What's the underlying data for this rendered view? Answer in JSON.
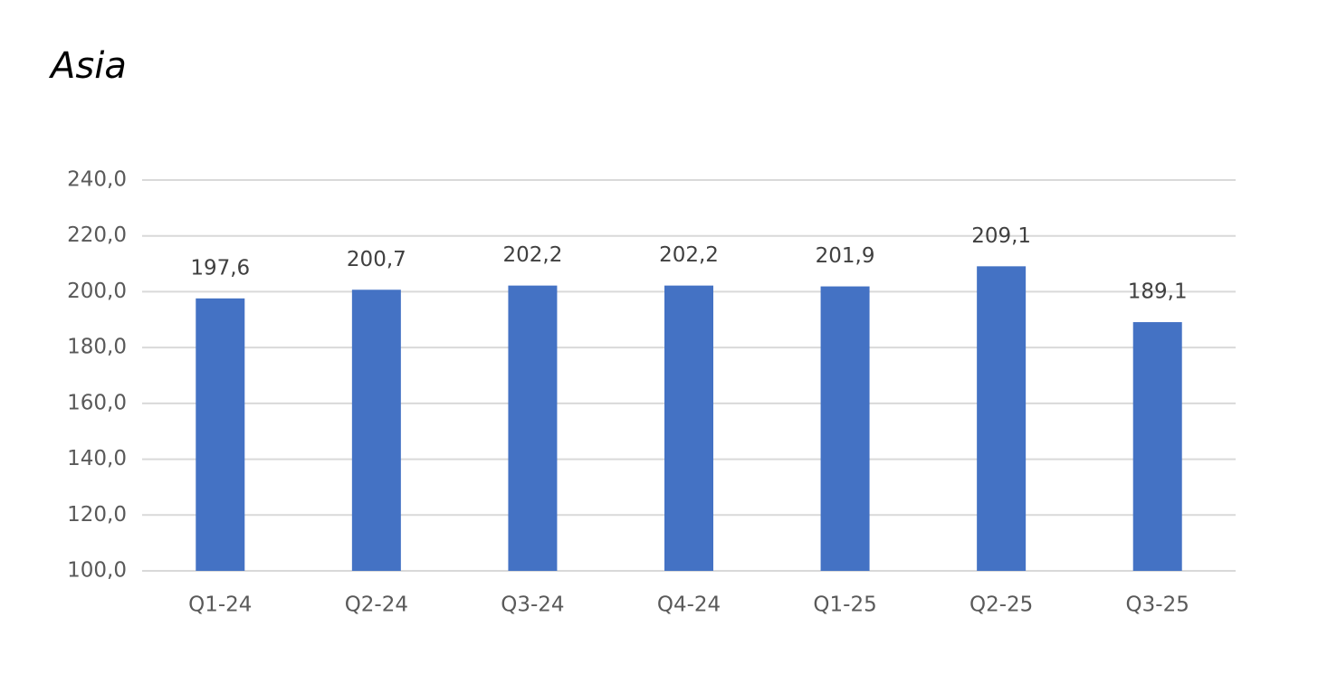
{
  "chart_data": {
    "type": "bar",
    "title": "Asia",
    "categories": [
      "Q1-24",
      "Q2-24",
      "Q3-24",
      "Q4-24",
      "Q1-25",
      "Q2-25",
      "Q3-25"
    ],
    "values": [
      197.6,
      200.7,
      202.2,
      202.2,
      201.9,
      209.1,
      189.1
    ],
    "value_labels": [
      "197,6",
      "200,7",
      "202,2",
      "202,2",
      "201,9",
      "209,1",
      "189,1"
    ],
    "color": "#4472c4",
    "ylim": [
      100,
      240
    ],
    "yticks": [
      {
        "value": 100,
        "label": "100,0"
      },
      {
        "value": 120,
        "label": "120,0"
      },
      {
        "value": 140,
        "label": "140,0"
      },
      {
        "value": 160,
        "label": "160,0"
      },
      {
        "value": 180,
        "label": "180,0"
      },
      {
        "value": 200,
        "label": "200,0"
      },
      {
        "value": 220,
        "label": "220,0"
      },
      {
        "value": 240,
        "label": "240,0"
      }
    ],
    "grid": true
  }
}
